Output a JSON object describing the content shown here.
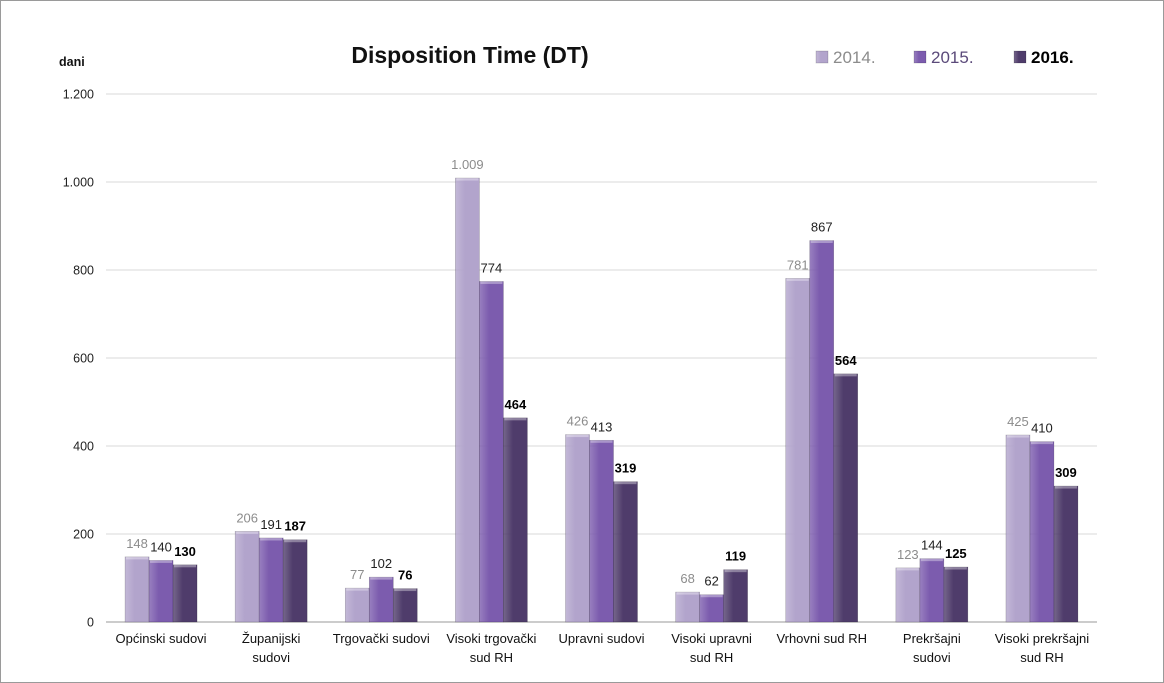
{
  "chart_data": {
    "type": "bar",
    "title": "Disposition Time (DT)",
    "ylabel": "dani",
    "xlabel": "",
    "ylim": [
      0,
      1200
    ],
    "yticks": [
      0,
      200,
      400,
      600,
      800,
      1000,
      1200
    ],
    "ytick_labels": [
      "0",
      "200",
      "400",
      "600",
      "800",
      "1.000",
      "1.200"
    ],
    "grid": true,
    "legend_position": "top-right",
    "categories": [
      "Općinski sudovi",
      "Županijski sudovi",
      "Trgovački sudovi",
      "Visoki trgovački sud RH",
      "Upravni sudovi",
      "Visoki upravni sud RH",
      "Vrhovni sud RH",
      "Prekršajni sudovi",
      "Visoki prekršajni sud RH"
    ],
    "category_lines": [
      [
        "Općinski sudovi"
      ],
      [
        "Županijski",
        "sudovi"
      ],
      [
        "Trgovački sudovi"
      ],
      [
        "Visoki trgovački",
        "sud RH"
      ],
      [
        "Upravni sudovi"
      ],
      [
        "Visoki upravni",
        "sud RH"
      ],
      [
        "Vrhovni sud RH"
      ],
      [
        "Prekršajni",
        "sudovi"
      ],
      [
        "Visoki prekršajni",
        "sud RH"
      ]
    ],
    "series": [
      {
        "name": "2014.",
        "values": [
          148,
          206,
          77,
          1009,
          426,
          68,
          781,
          123,
          425
        ],
        "labels": [
          "148",
          "206",
          "77",
          "1.009",
          "426",
          "68",
          "781",
          "123",
          "425"
        ],
        "color": "#b2a4cc",
        "label_color": "#8c8c8c",
        "label_bold": false
      },
      {
        "name": "2015.",
        "values": [
          140,
          191,
          102,
          774,
          413,
          62,
          867,
          144,
          410
        ],
        "labels": [
          "140",
          "191",
          "102",
          "774",
          "413",
          "62",
          "867",
          "144",
          "410"
        ],
        "color": "#7c5cae",
        "label_color": "#222222",
        "label_bold": false
      },
      {
        "name": "2016.",
        "values": [
          130,
          187,
          76,
          464,
          319,
          119,
          564,
          125,
          309
        ],
        "labels": [
          "130",
          "187",
          "76",
          "464",
          "319",
          "119",
          "564",
          "125",
          "309"
        ],
        "color": "#4f3c6b",
        "label_color": "#000000",
        "label_bold": true
      }
    ]
  }
}
